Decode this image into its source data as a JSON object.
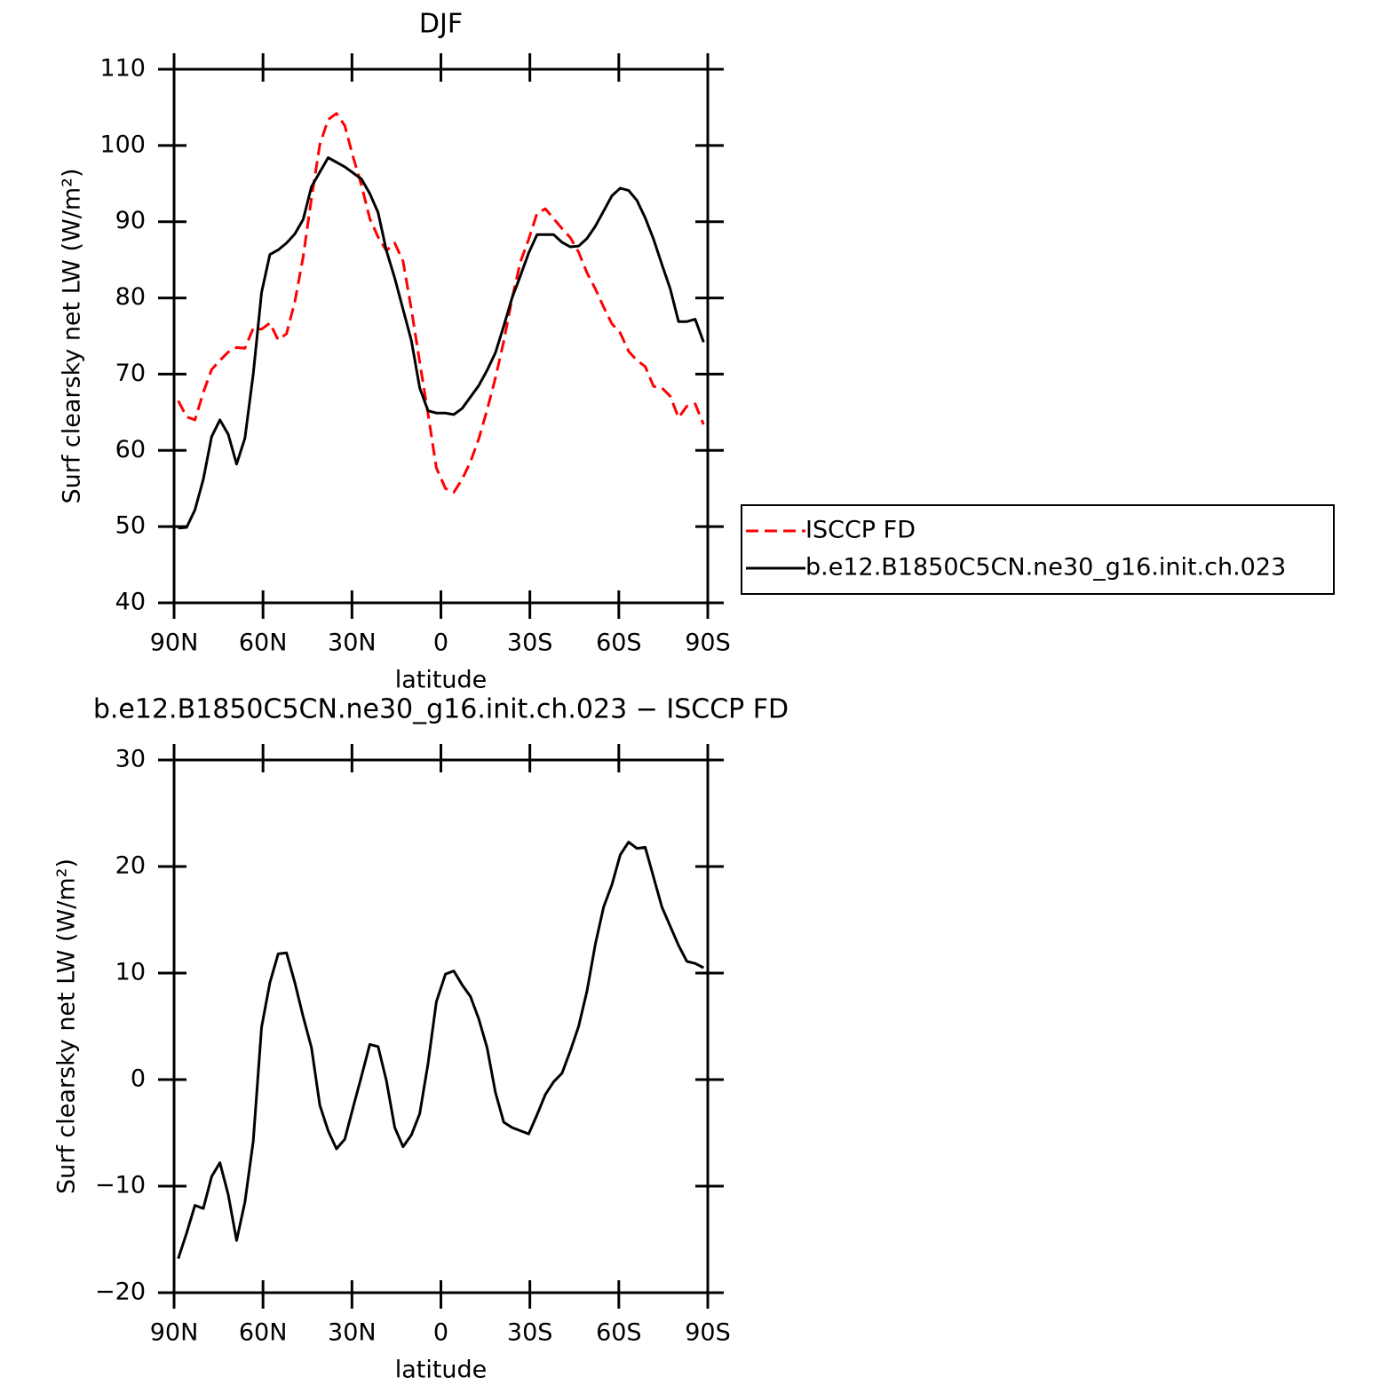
{
  "chart_data": [
    {
      "type": "line",
      "title": "DJF",
      "xlabel": "latitude",
      "ylabel": "Surf clearsky net LW (W/m²)",
      "x": [
        88.59,
        85.76,
        82.95,
        80.14,
        77.33,
        74.53,
        71.72,
        68.91,
        66.1,
        63.3,
        60.49,
        57.68,
        54.88,
        52.07,
        49.26,
        46.45,
        43.65,
        40.84,
        38.03,
        35.22,
        32.42,
        29.61,
        26.8,
        23.99,
        21.19,
        18.38,
        15.57,
        12.76,
        9.96,
        7.15,
        4.34,
        1.54,
        -1.54,
        -4.34,
        -7.15,
        -9.96,
        -12.76,
        -15.57,
        -18.38,
        -21.19,
        -23.99,
        -26.8,
        -29.61,
        -32.42,
        -35.22,
        -38.03,
        -40.84,
        -43.65,
        -46.45,
        -49.26,
        -52.07,
        -54.88,
        -57.68,
        -60.49,
        -63.3,
        -66.1,
        -68.91,
        -71.72,
        -74.53,
        -77.33,
        -80.14,
        -82.95,
        -85.76,
        -88.59
      ],
      "series": [
        {
          "name": "ISCCP FD",
          "color": "#ff0000",
          "line_style": "dashed",
          "values": [
            66.5,
            64.4,
            64.0,
            67.6,
            70.6,
            71.8,
            72.9,
            73.5,
            73.4,
            76.0,
            75.9,
            76.7,
            74.5,
            75.3,
            79.5,
            85.4,
            93.1,
            100.1,
            103.4,
            104.2,
            102.6,
            98.5,
            94.8,
            90.4,
            88.0,
            86.2,
            87.2,
            84.8,
            78.5,
            71.6,
            64.8,
            57.7,
            55.0,
            54.5,
            56.2,
            58.5,
            61.5,
            65.3,
            69.5,
            74.3,
            79.9,
            84.7,
            87.7,
            91.1,
            91.7,
            90.4,
            89.1,
            87.9,
            86.0,
            83.3,
            81.2,
            78.8,
            76.6,
            75.4,
            73.0,
            71.8,
            71.0,
            68.4,
            68.2,
            67.1,
            64.3,
            65.8,
            66.1,
            63.4
          ]
        },
        {
          "name": "b.e12.B1850C5CN.ne30_g16.init.ch.023",
          "color": "#000000",
          "line_style": "solid",
          "values": [
            49.8,
            49.9,
            52.2,
            56.2,
            61.8,
            64.0,
            62.1,
            58.2,
            61.6,
            70.0,
            80.7,
            85.7,
            86.3,
            87.2,
            88.4,
            90.3,
            94.6,
            96.5,
            98.4,
            97.8,
            97.2,
            96.4,
            95.6,
            93.7,
            91.2,
            86.2,
            82.6,
            78.5,
            74.4,
            68.2,
            65.2,
            64.9,
            64.9,
            64.7,
            65.5,
            67.0,
            68.5,
            70.5,
            72.8,
            76.3,
            80.0,
            82.9,
            85.9,
            88.3,
            88.3,
            88.3,
            87.3,
            86.7,
            86.8,
            87.8,
            89.4,
            91.4,
            93.4,
            94.4,
            94.1,
            92.8,
            90.5,
            87.7,
            84.4,
            81.2,
            76.9,
            76.9,
            77.2,
            74.2
          ]
        }
      ],
      "xlim": [
        90,
        -90
      ],
      "xticks": [
        {
          "value": 90,
          "label": "90N"
        },
        {
          "value": 60,
          "label": "60N"
        },
        {
          "value": 30,
          "label": "30N"
        },
        0,
        {
          "value": -30,
          "label": "30S"
        },
        {
          "value": -60,
          "label": "60S"
        },
        {
          "value": -90,
          "label": "90S"
        }
      ],
      "ylim": [
        40,
        110
      ],
      "yticks": [
        40,
        50,
        60,
        70,
        80,
        90,
        100,
        110
      ],
      "legend": "right"
    },
    {
      "type": "line",
      "title": "b.e12.B1850C5CN.ne30_g16.init.ch.023 − ISCCP FD",
      "xlabel": "latitude",
      "ylabel": "Surf clearsky net LW (W/m²)",
      "x": [
        88.59,
        85.76,
        82.95,
        80.14,
        77.33,
        74.53,
        71.72,
        68.91,
        66.1,
        63.3,
        60.49,
        57.68,
        54.88,
        52.07,
        49.26,
        46.45,
        43.65,
        40.84,
        38.03,
        35.22,
        32.42,
        29.61,
        26.8,
        23.99,
        21.19,
        18.38,
        15.57,
        12.76,
        9.96,
        7.15,
        4.34,
        1.54,
        -1.54,
        -4.34,
        -7.15,
        -9.96,
        -12.76,
        -15.57,
        -18.38,
        -21.19,
        -23.99,
        -26.8,
        -29.61,
        -32.42,
        -35.22,
        -38.03,
        -40.84,
        -43.65,
        -46.45,
        -49.26,
        -52.07,
        -54.88,
        -57.68,
        -60.49,
        -63.3,
        -66.1,
        -68.91,
        -71.72,
        -74.53,
        -77.33,
        -80.14,
        -82.95,
        -85.76,
        -88.59
      ],
      "values": [
        -16.8,
        -14.4,
        -11.8,
        -12.1,
        -9.1,
        -7.8,
        -10.8,
        -15.1,
        -11.5,
        -5.8,
        4.9,
        9.1,
        11.8,
        11.9,
        9.1,
        5.9,
        3.0,
        -2.4,
        -4.8,
        -6.5,
        -5.6,
        -2.6,
        0.3,
        3.3,
        3.1,
        -0.1,
        -4.5,
        -6.3,
        -5.2,
        -3.2,
        1.5,
        7.3,
        9.9,
        10.2,
        8.9,
        7.8,
        5.7,
        3.0,
        -1.2,
        -4.0,
        -4.5,
        -4.8,
        -5.1,
        -3.3,
        -1.4,
        -0.2,
        0.6,
        2.7,
        5.0,
        8.3,
        12.7,
        16.2,
        18.3,
        21.1,
        22.3,
        21.7,
        21.8,
        19.0,
        16.2,
        14.4,
        12.6,
        11.1,
        10.9,
        10.5
      ],
      "color": "#000000",
      "xlim": [
        90,
        -90
      ],
      "xticks": [
        {
          "value": 90,
          "label": "90N"
        },
        {
          "value": 60,
          "label": "60N"
        },
        {
          "value": 30,
          "label": "30N"
        },
        0,
        {
          "value": -30,
          "label": "30S"
        },
        {
          "value": -60,
          "label": "60S"
        },
        {
          "value": -90,
          "label": "90S"
        }
      ],
      "ylim": [
        -20,
        30
      ],
      "yticks": [
        {
          "value": -20,
          "label": "−20"
        },
        {
          "value": -10,
          "label": "−10"
        },
        0,
        10,
        20,
        30
      ]
    }
  ]
}
